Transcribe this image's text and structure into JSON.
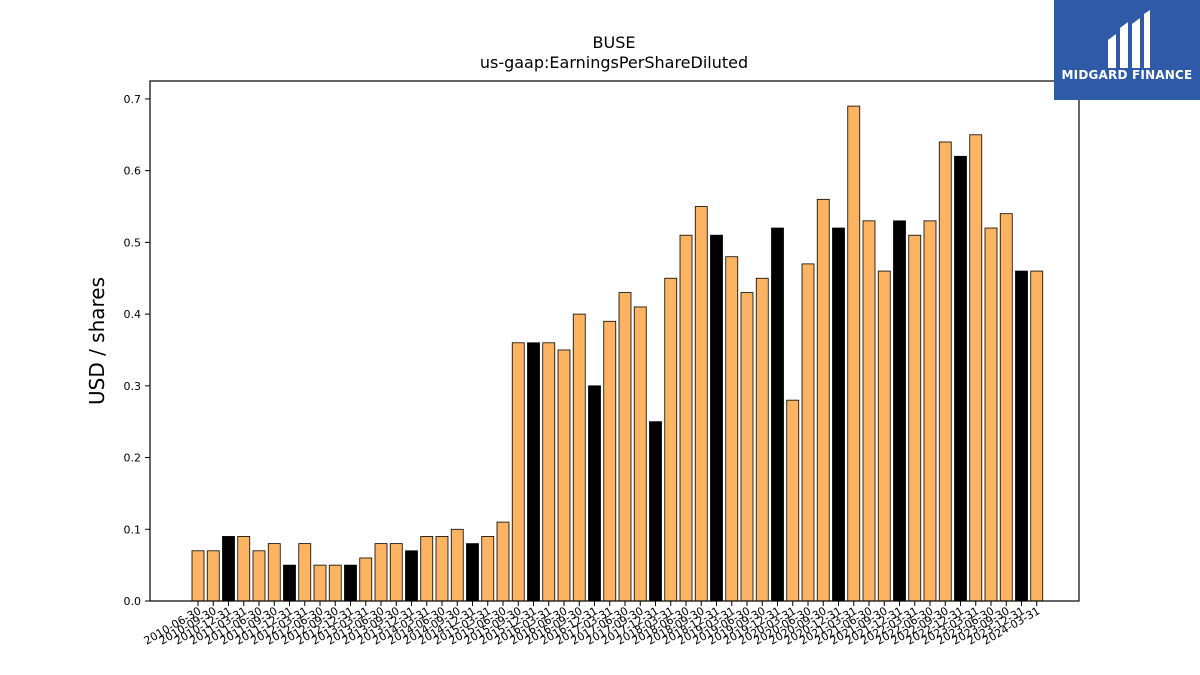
{
  "logo": {
    "text": "MIDGARD FINANCE",
    "icon": "midgard-logo-icon",
    "background": "#2f5aa8"
  },
  "chart_data": {
    "type": "bar",
    "title": "BUSE",
    "subtitle": "us-gaap:EarningsPerShareDiluted",
    "xlabel": "",
    "ylabel": "USD / shares",
    "ylim": [
      0,
      0.725
    ],
    "yticks": [
      0.0,
      0.1,
      0.2,
      0.3,
      0.4,
      0.5,
      0.6,
      0.7
    ],
    "grid": false,
    "colors": {
      "quarter": "#fdb462",
      "annual": "#000000",
      "edge": "#000000"
    },
    "categories": [
      "2010-06-30",
      "2010-09-30",
      "2010-12-31",
      "2011-03-31",
      "2011-06-30",
      "2011-09-30",
      "2011-12-31",
      "2012-03-31",
      "2012-06-30",
      "2012-09-30",
      "2012-12-31",
      "2013-03-31",
      "2013-06-30",
      "2013-09-30",
      "2013-12-31",
      "2014-03-31",
      "2014-06-30",
      "2014-09-30",
      "2014-12-31",
      "2015-03-31",
      "2015-06-30",
      "2015-09-30",
      "2015-12-31",
      "2016-03-31",
      "2016-06-30",
      "2016-09-30",
      "2016-12-31",
      "2017-03-31",
      "2017-06-30",
      "2017-09-30",
      "2017-12-31",
      "2018-03-31",
      "2018-06-30",
      "2018-09-30",
      "2018-12-31",
      "2019-03-31",
      "2019-06-30",
      "2019-09-30",
      "2019-12-31",
      "2020-03-31",
      "2020-06-30",
      "2020-09-30",
      "2020-12-31",
      "2021-03-31",
      "2021-06-30",
      "2021-09-30",
      "2021-12-31",
      "2022-03-31",
      "2022-06-30",
      "2022-09-30",
      "2022-12-31",
      "2023-03-31",
      "2023-06-30",
      "2023-09-30",
      "2023-12-31",
      "2024-03-31"
    ],
    "values": [
      0.07,
      0.07,
      0.09,
      0.09,
      0.07,
      0.08,
      0.05,
      0.08,
      0.05,
      0.05,
      0.05,
      0.06,
      0.08,
      0.08,
      0.07,
      0.09,
      0.09,
      0.1,
      0.08,
      0.09,
      0.11,
      0.36,
      0.36,
      0.36,
      0.35,
      0.4,
      0.3,
      0.39,
      0.43,
      0.41,
      0.25,
      0.45,
      0.51,
      0.55,
      0.51,
      0.48,
      0.43,
      0.45,
      0.52,
      0.28,
      0.47,
      0.56,
      0.52,
      0.69,
      0.53,
      0.46,
      0.53,
      0.51,
      0.53,
      0.64,
      0.62,
      0.65,
      0.52,
      0.54,
      0.46,
      0.46
    ],
    "annual_flags": [
      0,
      0,
      1,
      0,
      0,
      0,
      1,
      0,
      0,
      0,
      1,
      0,
      0,
      0,
      1,
      0,
      0,
      0,
      1,
      0,
      0,
      0,
      1,
      0,
      0,
      0,
      1,
      0,
      0,
      0,
      1,
      0,
      0,
      0,
      1,
      0,
      0,
      0,
      1,
      0,
      0,
      0,
      1,
      0,
      0,
      0,
      1,
      0,
      0,
      0,
      1,
      0,
      0,
      0,
      1,
      0
    ]
  }
}
